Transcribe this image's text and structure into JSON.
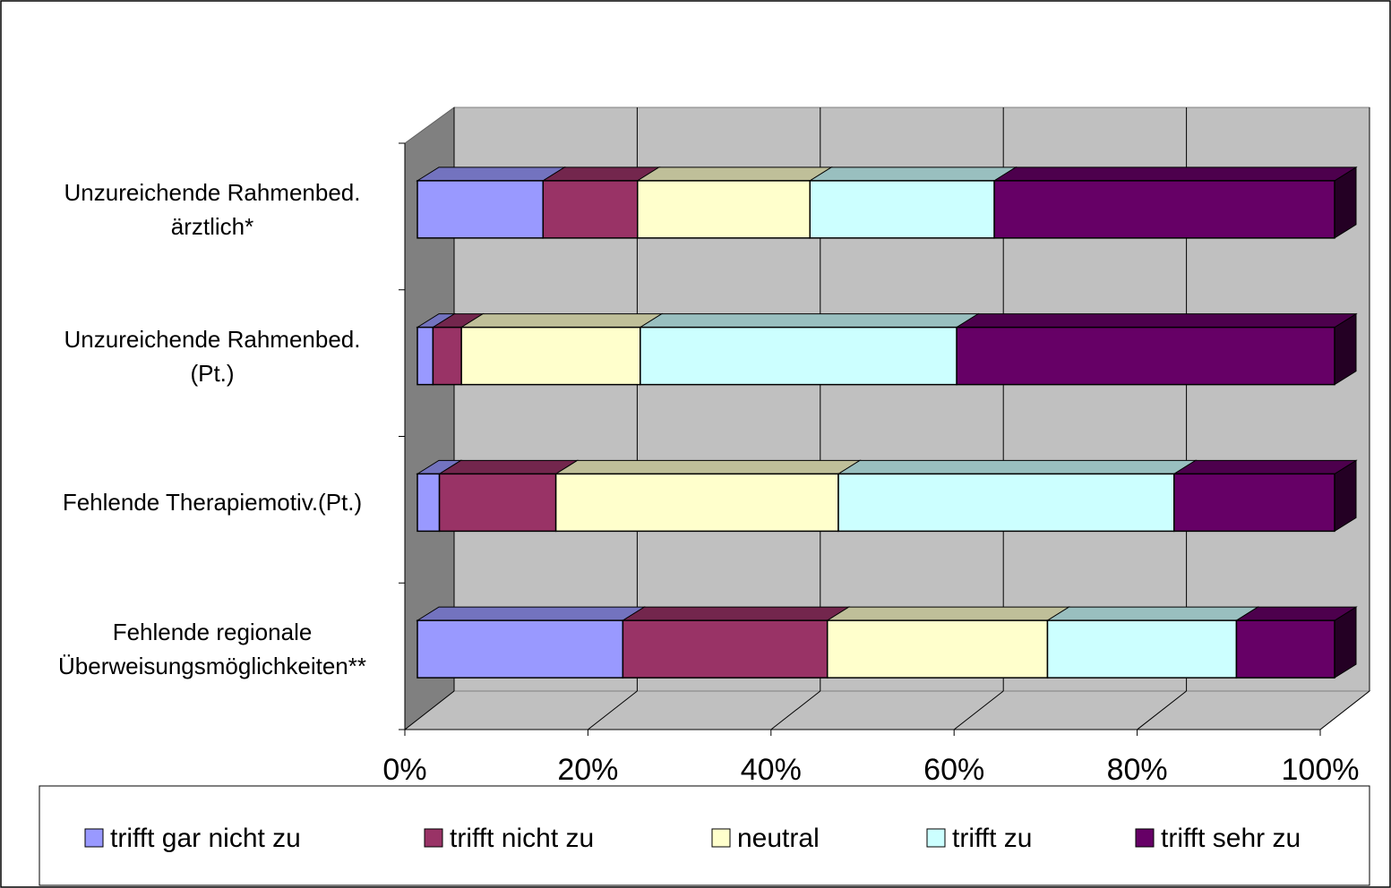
{
  "chart_data": {
    "type": "stacked-bar-horizontal-3d",
    "categories": [
      "Unzureichende Rahmenbed.\närztlich*",
      "Unzureichende Rahmenbed.\n(Pt.)",
      "Fehlende Therapiemotiv.(Pt.)",
      "Fehlende regionale\nÜberweisungsmöglichkeiten**"
    ],
    "series": [
      {
        "name": "trifft gar nicht zu",
        "color": "#9999ff",
        "values": [
          13.7,
          1.7,
          2.4,
          22.4
        ]
      },
      {
        "name": "trifft nicht zu",
        "color": "#993366",
        "values": [
          10.3,
          3.1,
          12.7,
          22.3
        ]
      },
      {
        "name": "neutral",
        "color": "#ffffcc",
        "values": [
          18.8,
          19.5,
          30.8,
          24.0
        ]
      },
      {
        "name": "trifft zu",
        "color": "#ccffff",
        "values": [
          20.1,
          34.5,
          36.6,
          20.6
        ]
      },
      {
        "name": "trifft sehr zu",
        "color": "#660066",
        "values": [
          37.1,
          41.2,
          17.5,
          10.7
        ]
      }
    ],
    "xlim": [
      0,
      100
    ],
    "xticks": [
      {
        "value": 0,
        "label": "0%"
      },
      {
        "value": 20,
        "label": "20%"
      },
      {
        "value": 40,
        "label": "40%"
      },
      {
        "value": 60,
        "label": "60%"
      },
      {
        "value": 80,
        "label": "80%"
      },
      {
        "value": 100,
        "label": "100%"
      }
    ],
    "grid": true,
    "legend": "bottom"
  }
}
